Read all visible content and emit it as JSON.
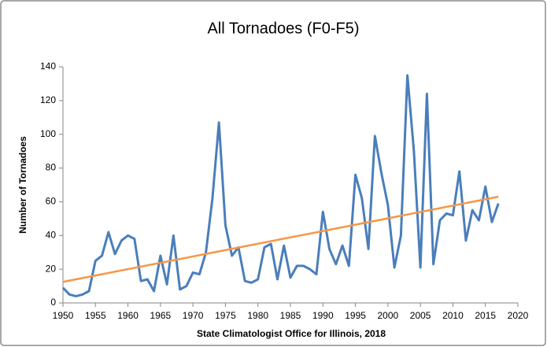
{
  "chart_data": {
    "type": "line",
    "title": "All Tornadoes (F0-F5)",
    "xlabel": "State Climatologist Office for Illinois, 2018",
    "ylabel": "Number of Tornadoes",
    "x": [
      1950,
      1951,
      1952,
      1953,
      1954,
      1955,
      1956,
      1957,
      1958,
      1959,
      1960,
      1961,
      1962,
      1963,
      1964,
      1965,
      1966,
      1967,
      1968,
      1969,
      1970,
      1971,
      1972,
      1973,
      1974,
      1975,
      1976,
      1977,
      1978,
      1979,
      1980,
      1981,
      1982,
      1983,
      1984,
      1985,
      1986,
      1987,
      1988,
      1989,
      1990,
      1991,
      1992,
      1993,
      1994,
      1995,
      1996,
      1997,
      1998,
      1999,
      2000,
      2001,
      2002,
      2003,
      2004,
      2005,
      2006,
      2007,
      2008,
      2009,
      2010,
      2011,
      2012,
      2013,
      2014,
      2015,
      2016,
      2017
    ],
    "series": [
      {
        "color": "#4a7ebb",
        "values": [
          9,
          5,
          4,
          5,
          7,
          25,
          28,
          42,
          29,
          37,
          40,
          38,
          13,
          14,
          7,
          28,
          11,
          40,
          8,
          10,
          18,
          17,
          30,
          62,
          107,
          46,
          28,
          33,
          13,
          12,
          14,
          33,
          35,
          14,
          34,
          15,
          22,
          22,
          20,
          17,
          54,
          32,
          23,
          34,
          22,
          76,
          62,
          32,
          99,
          77,
          58,
          21,
          40,
          135,
          90,
          21,
          124,
          23,
          49,
          53,
          52,
          78,
          37,
          55,
          49,
          69,
          48,
          59
        ]
      }
    ],
    "trendline": {
      "x": [
        1950,
        2017
      ],
      "values": [
        12.5,
        63
      ],
      "color": "#f79646"
    },
    "xlim": [
      1950,
      2020
    ],
    "xticks": [
      1950,
      1955,
      1960,
      1965,
      1970,
      1975,
      1980,
      1985,
      1990,
      1995,
      2000,
      2005,
      2010,
      2015,
      2020
    ],
    "ylim": [
      0,
      140
    ],
    "yticks": [
      0,
      20,
      40,
      60,
      80,
      100,
      120,
      140
    ]
  }
}
